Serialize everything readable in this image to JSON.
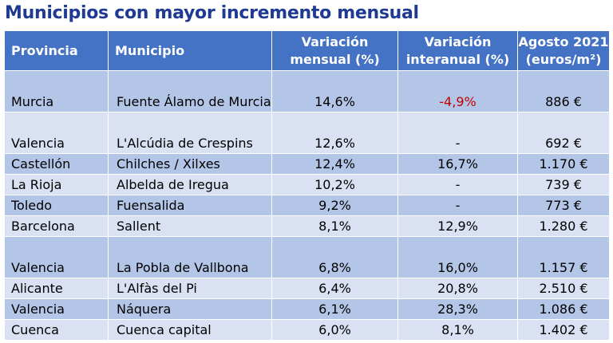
{
  "title": "Municipios con mayor incremento mensual",
  "colors": {
    "title": "#1f3a93",
    "header_bg": "#4472c4",
    "row_dark": "#b4c6e7",
    "row_light": "#d9e1f2",
    "negative": "#c00000"
  },
  "headers": {
    "provincia": "Provincia",
    "municipio": "Municipio",
    "variacion_mensual_1": "Variación",
    "variacion_mensual_2": "mensual (%)",
    "variacion_interanual_1": "Variación",
    "variacion_interanual_2": "interanual (%)",
    "precio_1": "Agosto 2021",
    "precio_2": "(euros/m²)"
  },
  "rows": [
    {
      "provincia": "Murcia",
      "municipio": "Fuente Álamo de Murcia",
      "mensual": "14,6%",
      "interanual": "-4,9%",
      "precio": "886 €"
    },
    {
      "provincia": "Valencia",
      "municipio": "L'Alcúdia de Crespins",
      "mensual": "12,6%",
      "interanual": "-",
      "precio": "692 €"
    },
    {
      "provincia": "Castellón",
      "municipio": "Chilches / Xilxes",
      "mensual": "12,4%",
      "interanual": "16,7%",
      "precio": "1.170 €"
    },
    {
      "provincia": "La Rioja",
      "municipio": "Albelda de Iregua",
      "mensual": "10,2%",
      "interanual": "-",
      "precio": "739 €"
    },
    {
      "provincia": "Toledo",
      "municipio": "Fuensalida",
      "mensual": "9,2%",
      "interanual": "-",
      "precio": "773 €"
    },
    {
      "provincia": "Barcelona",
      "municipio": "Sallent",
      "mensual": "8,1%",
      "interanual": "12,9%",
      "precio": "1.280 €"
    },
    {
      "provincia": "Valencia",
      "municipio": "La Pobla de Vallbona",
      "mensual": "6,8%",
      "interanual": "16,0%",
      "precio": "1.157 €"
    },
    {
      "provincia": "Alicante",
      "municipio": "L'Alfàs del Pi",
      "mensual": "6,4%",
      "interanual": "20,8%",
      "precio": "2.510 €"
    },
    {
      "provincia": "Valencia",
      "municipio": "Náquera",
      "mensual": "6,1%",
      "interanual": "28,3%",
      "precio": "1.086 €"
    },
    {
      "provincia": "Cuenca",
      "municipio": "Cuenca capital",
      "mensual": "6,0%",
      "interanual": "8,1%",
      "precio": "1.402 €"
    }
  ]
}
